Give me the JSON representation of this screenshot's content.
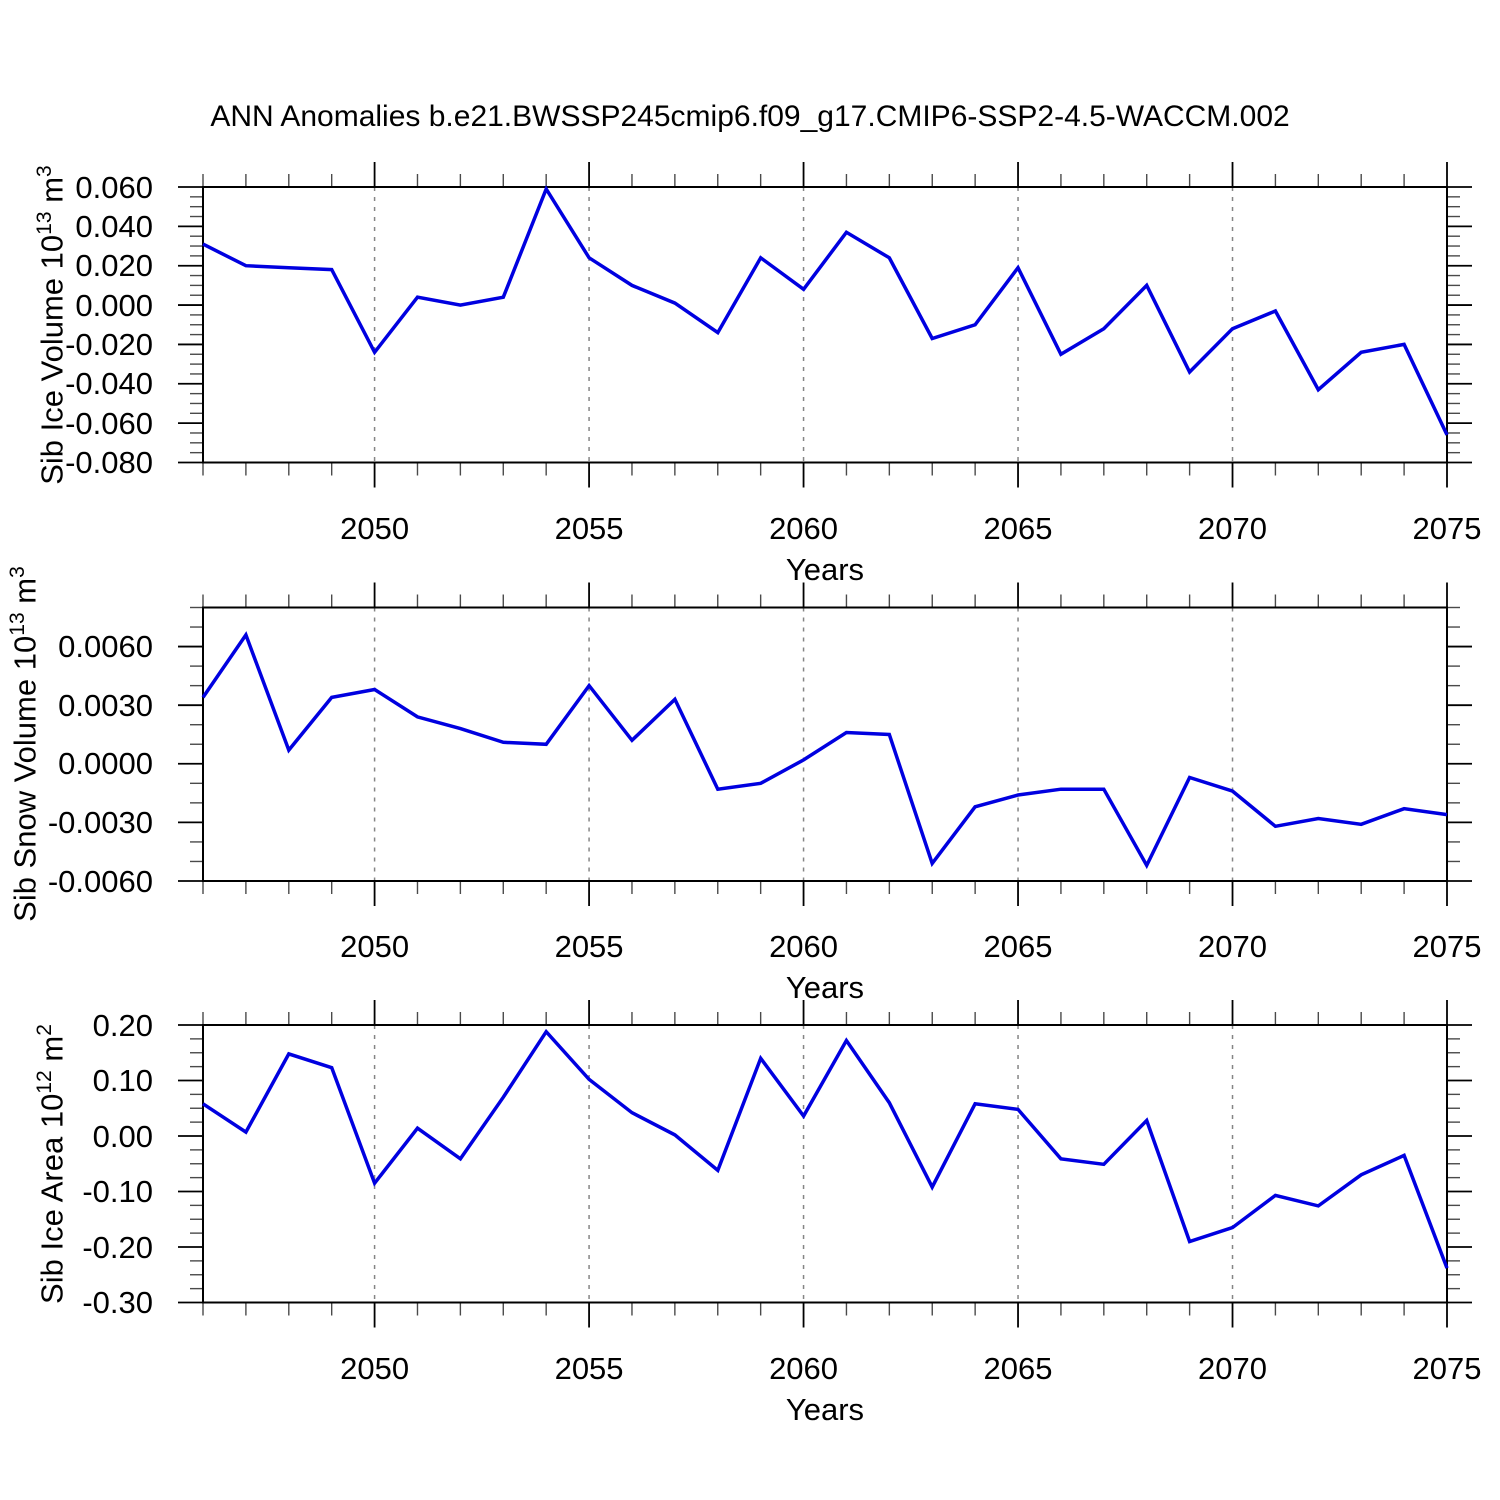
{
  "page": {
    "title": "ANN Anomalies b.e21.BWSSP245cmip6.f09_g17.CMIP6-SSP2-4.5-WACCM.002",
    "background": "#ffffff"
  },
  "colors": {
    "line": "#0000e0",
    "grid": "#858585",
    "frame": "#000000",
    "major_tick": "#000000",
    "minor_tick": "#4a4a4a",
    "text": "#000000"
  },
  "chart_data": [
    {
      "type": "line",
      "panel": "sib-ice-volume",
      "ylabel": "Sib Ice Volume 10^13 m^3",
      "ylabel_parts": {
        "text": "Sib Ice Volume 10",
        "sup1": "13",
        "mid": " m",
        "sup2": "3"
      },
      "xlabel": "Years",
      "grid": "vertical-dashed",
      "legend": "none",
      "xlim": [
        2046,
        2075
      ],
      "x_major_ticks": [
        2050,
        2055,
        2060,
        2065,
        2070,
        2075
      ],
      "x_minor_step": 1,
      "ylim": [
        -0.08,
        0.06
      ],
      "y_major_step": 0.02,
      "y_minor_step": 0.005,
      "y_decimals": 3,
      "y_tick_labels": [
        "0.060",
        "0.040",
        "0.020",
        "0.000",
        "-0.020",
        "-0.040",
        "-0.060",
        "-0.080"
      ],
      "x": [
        2046,
        2047,
        2048,
        2049,
        2050,
        2051,
        2052,
        2053,
        2054,
        2055,
        2056,
        2057,
        2058,
        2059,
        2060,
        2061,
        2062,
        2063,
        2064,
        2065,
        2066,
        2067,
        2068,
        2069,
        2070,
        2071,
        2072,
        2073,
        2074,
        2075
      ],
      "values": [
        0.031,
        0.02,
        0.019,
        0.018,
        -0.024,
        0.004,
        0.0,
        0.004,
        0.059,
        0.024,
        0.01,
        0.001,
        -0.014,
        0.024,
        0.008,
        0.037,
        0.024,
        -0.017,
        -0.01,
        0.019,
        -0.025,
        -0.012,
        0.01,
        -0.034,
        -0.012,
        -0.003,
        -0.043,
        -0.024,
        -0.02,
        -0.066
      ]
    },
    {
      "type": "line",
      "panel": "sib-snow-volume",
      "ylabel": "Sib Snow Volume 10^13 m^3",
      "ylabel_parts": {
        "text": "Sib Snow Volume 10",
        "sup1": "13",
        "mid": " m",
        "sup2": "3"
      },
      "xlabel": "Years",
      "grid": "vertical-dashed",
      "legend": "none",
      "xlim": [
        2046,
        2075
      ],
      "x_major_ticks": [
        2050,
        2055,
        2060,
        2065,
        2070,
        2075
      ],
      "x_minor_step": 1,
      "ylim": [
        -0.006,
        0.008
      ],
      "y_major_step": 0.003,
      "y_minor_step": 0.001,
      "y_decimals": 4,
      "y_tick_labels": [
        "0.0060",
        "0.0030",
        "0.0000",
        "-0.0030",
        "-0.0060"
      ],
      "x": [
        2046,
        2047,
        2048,
        2049,
        2050,
        2051,
        2052,
        2053,
        2054,
        2055,
        2056,
        2057,
        2058,
        2059,
        2060,
        2061,
        2062,
        2063,
        2064,
        2065,
        2066,
        2067,
        2068,
        2069,
        2070,
        2071,
        2072,
        2073,
        2074,
        2075
      ],
      "values": [
        0.0034,
        0.0066,
        0.0007,
        0.0034,
        0.0038,
        0.0024,
        0.0018,
        0.0011,
        0.001,
        0.004,
        0.0012,
        0.0033,
        -0.0013,
        -0.001,
        0.0002,
        0.0016,
        0.0015,
        -0.0051,
        -0.0022,
        -0.0016,
        -0.0013,
        -0.0013,
        -0.0052,
        -0.0007,
        -0.0014,
        -0.0032,
        -0.0028,
        -0.0031,
        -0.0023,
        -0.0026
      ]
    },
    {
      "type": "line",
      "panel": "sib-ice-area",
      "ylabel": "Sib Ice Area 10^12 m^2",
      "ylabel_parts": {
        "text": "Sib Ice Area 10",
        "sup1": "12",
        "mid": " m",
        "sup2": "2"
      },
      "xlabel": "Years",
      "grid": "vertical-dashed",
      "legend": "none",
      "xlim": [
        2046,
        2075
      ],
      "x_major_ticks": [
        2050,
        2055,
        2060,
        2065,
        2070,
        2075
      ],
      "x_minor_step": 1,
      "ylim": [
        -0.3,
        0.2
      ],
      "y_major_step": 0.1,
      "y_minor_step": 0.025,
      "y_decimals": 2,
      "y_tick_labels": [
        "0.20",
        "0.10",
        "0.00",
        "-0.10",
        "-0.20",
        "-0.30"
      ],
      "x": [
        2046,
        2047,
        2048,
        2049,
        2050,
        2051,
        2052,
        2053,
        2054,
        2055,
        2056,
        2057,
        2058,
        2059,
        2060,
        2061,
        2062,
        2063,
        2064,
        2065,
        2066,
        2067,
        2068,
        2069,
        2070,
        2071,
        2072,
        2073,
        2074,
        2075
      ],
      "values": [
        0.058,
        0.007,
        0.148,
        0.123,
        -0.085,
        0.014,
        -0.041,
        0.07,
        0.188,
        0.102,
        0.042,
        0.002,
        -0.062,
        0.14,
        0.036,
        0.172,
        0.06,
        -0.092,
        0.058,
        0.048,
        -0.041,
        -0.051,
        0.028,
        -0.19,
        -0.165,
        -0.107,
        -0.126,
        -0.07,
        -0.035,
        -0.238
      ]
    }
  ]
}
